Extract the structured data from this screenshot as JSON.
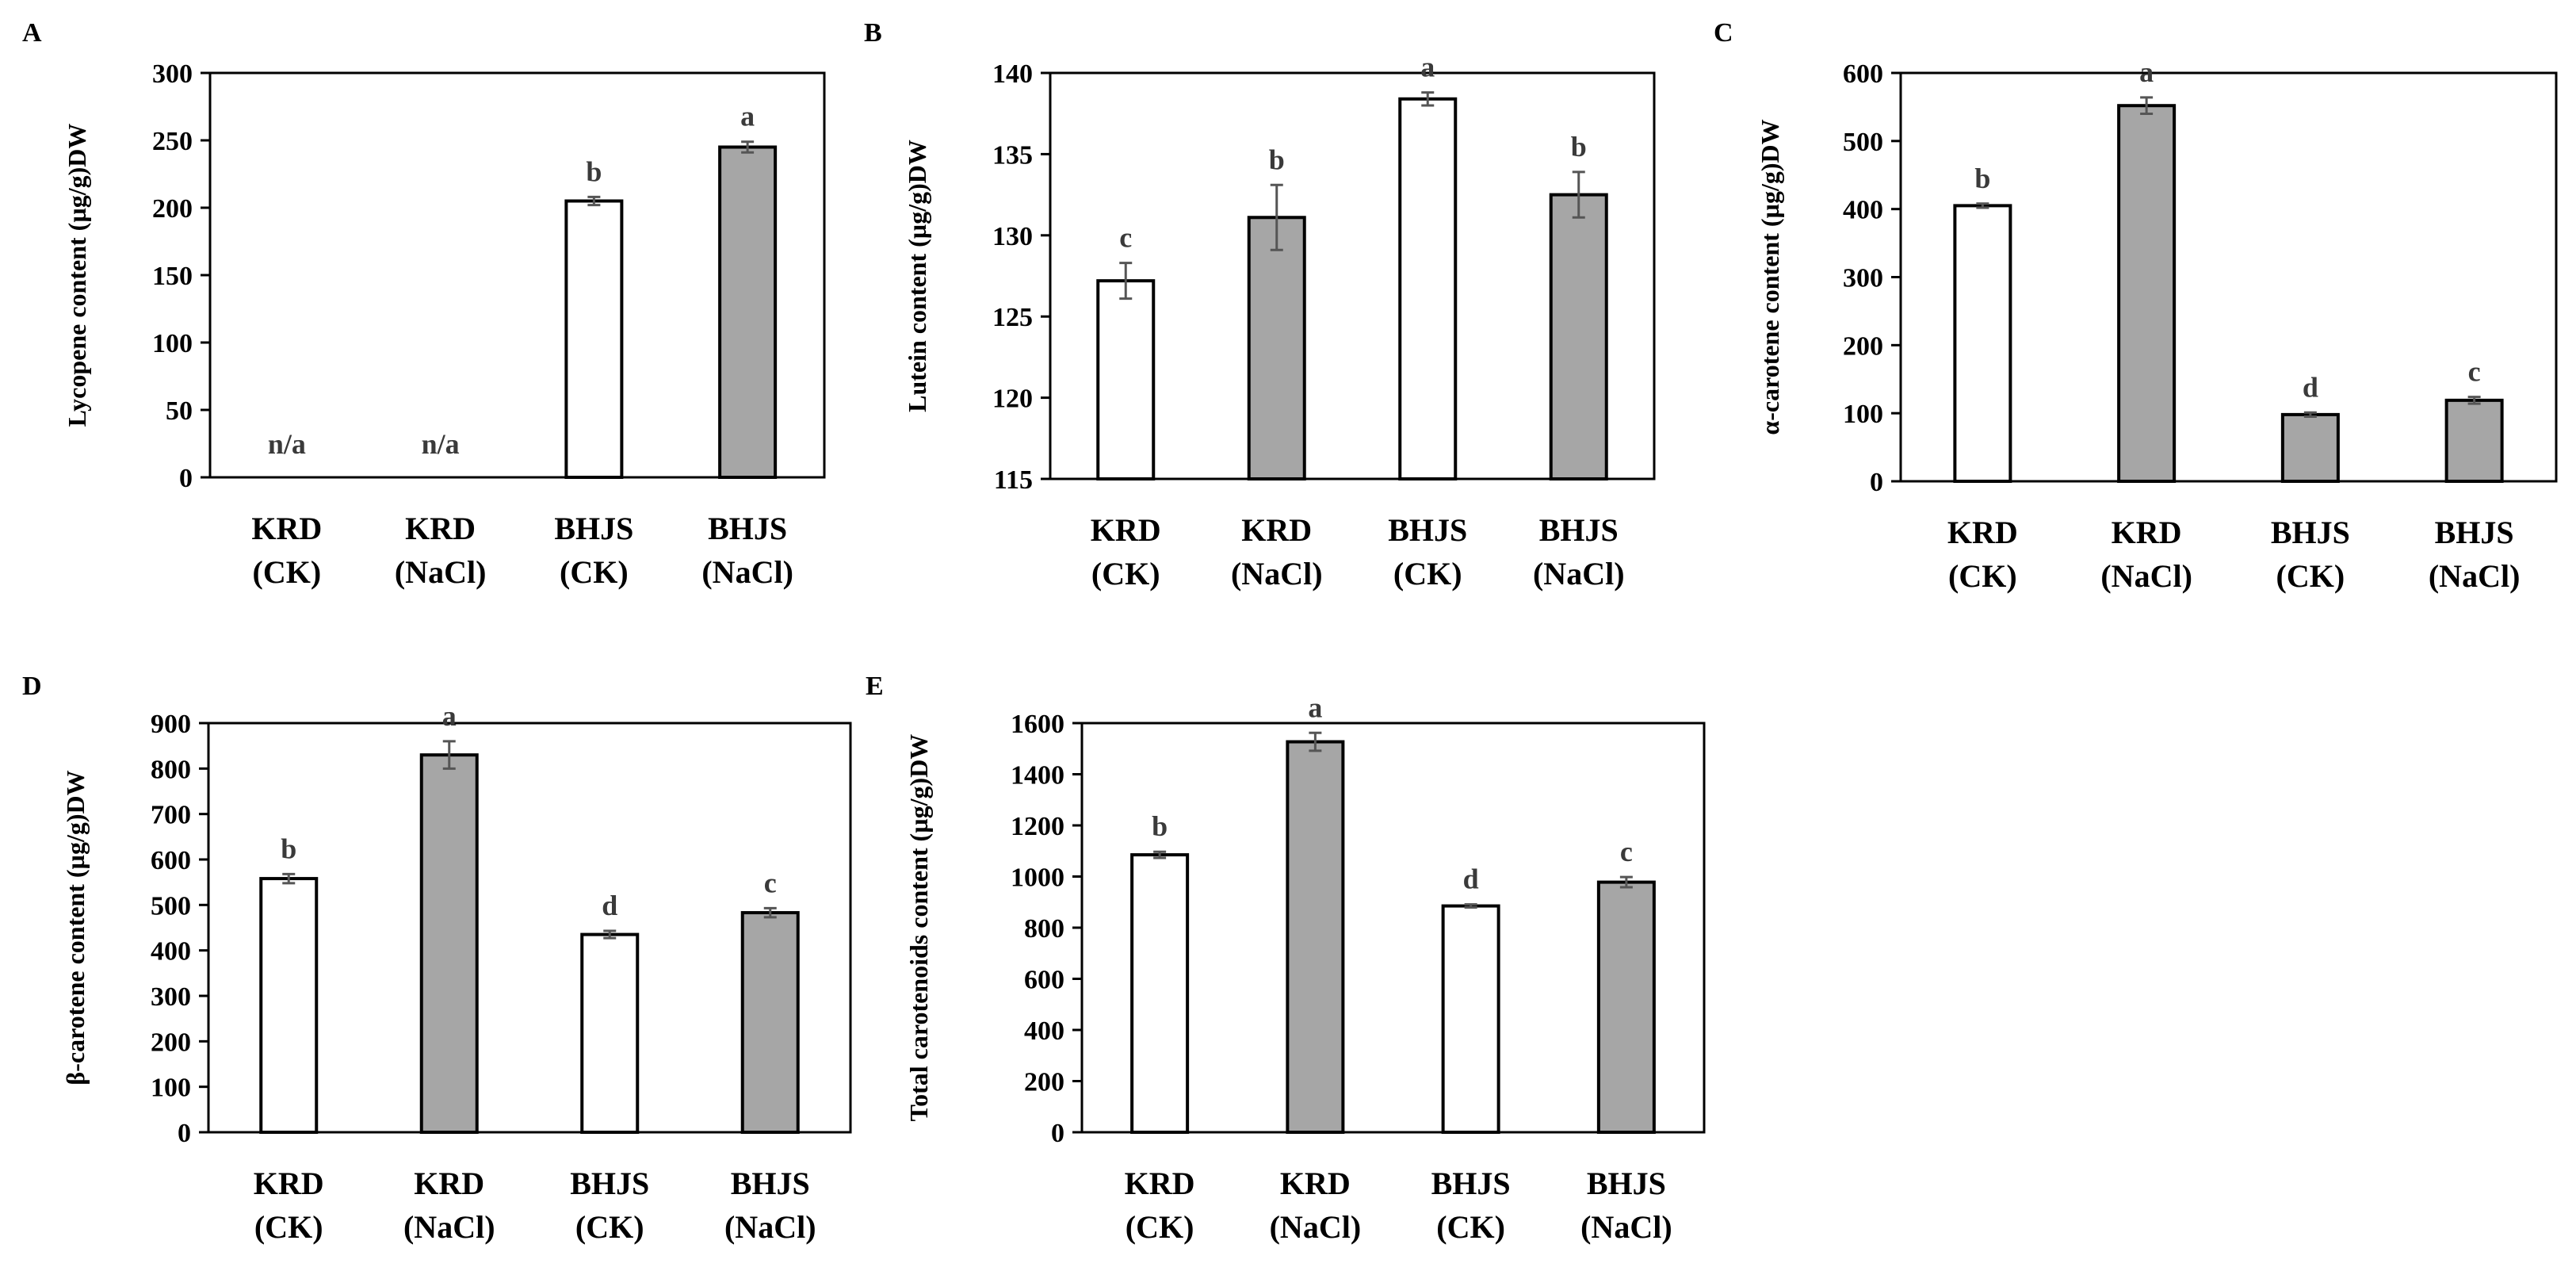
{
  "chart_data": [
    {
      "panel": "A",
      "type": "bar",
      "ylabel": "Lycopene content (µg/g)DW",
      "ylim": [
        0,
        300
      ],
      "yticks": [
        0,
        50,
        100,
        150,
        200,
        250,
        300
      ],
      "categories": [
        [
          "KRD",
          "(CK)"
        ],
        [
          "KRD",
          "(NaCl)"
        ],
        [
          "BHJS",
          "(CK)"
        ],
        [
          "BHJS",
          "(NaCl)"
        ]
      ],
      "values": [
        null,
        null,
        205,
        245
      ],
      "errors": [
        0,
        0,
        3,
        4
      ],
      "labels": [
        "n/a",
        "n/a",
        "b",
        "a"
      ],
      "fills": [
        "#ffffff",
        "#ffffff",
        "#ffffff",
        "#a6a6a6"
      ]
    },
    {
      "panel": "B",
      "type": "bar",
      "ylabel": "Lutein content (µg/g)DW",
      "ylim": [
        115,
        140
      ],
      "yticks": [
        115,
        120,
        125,
        130,
        135,
        140
      ],
      "categories": [
        [
          "KRD",
          "(CK)"
        ],
        [
          "KRD",
          "(NaCl)"
        ],
        [
          "BHJS",
          "(CK)"
        ],
        [
          "BHJS",
          "(NaCl)"
        ]
      ],
      "values": [
        127.2,
        131.1,
        138.4,
        132.5
      ],
      "errors": [
        1.1,
        2.0,
        0.4,
        1.4
      ],
      "labels": [
        "c",
        "b",
        "a",
        "b"
      ],
      "fills": [
        "#ffffff",
        "#a6a6a6",
        "#ffffff",
        "#a6a6a6"
      ]
    },
    {
      "panel": "C",
      "type": "bar",
      "ylabel": "α-carotene content (µg/g)DW",
      "ylim": [
        0,
        600
      ],
      "yticks": [
        0,
        100,
        200,
        300,
        400,
        500,
        600
      ],
      "categories": [
        [
          "KRD",
          "(CK)"
        ],
        [
          "KRD",
          "(NaCl)"
        ],
        [
          "BHJS",
          "(CK)"
        ],
        [
          "BHJS",
          "(NaCl)"
        ]
      ],
      "values": [
        405,
        552,
        98,
        119
      ],
      "errors": [
        3,
        12,
        3,
        5
      ],
      "labels": [
        "b",
        "a",
        "d",
        "c"
      ],
      "fills": [
        "#ffffff",
        "#a6a6a6",
        "#a6a6a6",
        "#a6a6a6"
      ]
    },
    {
      "panel": "D",
      "type": "bar",
      "ylabel": "β-carotene content (µg/g)DW",
      "ylim": [
        0,
        900
      ],
      "yticks": [
        0,
        100,
        200,
        300,
        400,
        500,
        600,
        700,
        800,
        900
      ],
      "categories": [
        [
          "KRD",
          "(CK)"
        ],
        [
          "KRD",
          "(NaCl)"
        ],
        [
          "BHJS",
          "(CK)"
        ],
        [
          "BHJS",
          "(NaCl)"
        ]
      ],
      "values": [
        558,
        830,
        435,
        483
      ],
      "errors": [
        10,
        30,
        8,
        10
      ],
      "labels": [
        "b",
        "a",
        "d",
        "c"
      ],
      "fills": [
        "#ffffff",
        "#a6a6a6",
        "#ffffff",
        "#a6a6a6"
      ]
    },
    {
      "panel": "E",
      "type": "bar",
      "ylabel": "Total carotenoids content (µg/g)DW",
      "ylim": [
        0,
        1600
      ],
      "yticks": [
        0,
        200,
        400,
        600,
        800,
        1000,
        1200,
        1400,
        1600
      ],
      "categories": [
        [
          "KRD",
          "(CK)"
        ],
        [
          "KRD",
          "(NaCl)"
        ],
        [
          "BHJS",
          "(CK)"
        ],
        [
          "BHJS",
          "(NaCl)"
        ]
      ],
      "values": [
        1085,
        1527,
        885,
        978
      ],
      "errors": [
        12,
        35,
        6,
        20
      ],
      "labels": [
        "b",
        "a",
        "d",
        "c"
      ],
      "fills": [
        "#ffffff",
        "#a6a6a6",
        "#ffffff",
        "#a6a6a6"
      ]
    }
  ]
}
